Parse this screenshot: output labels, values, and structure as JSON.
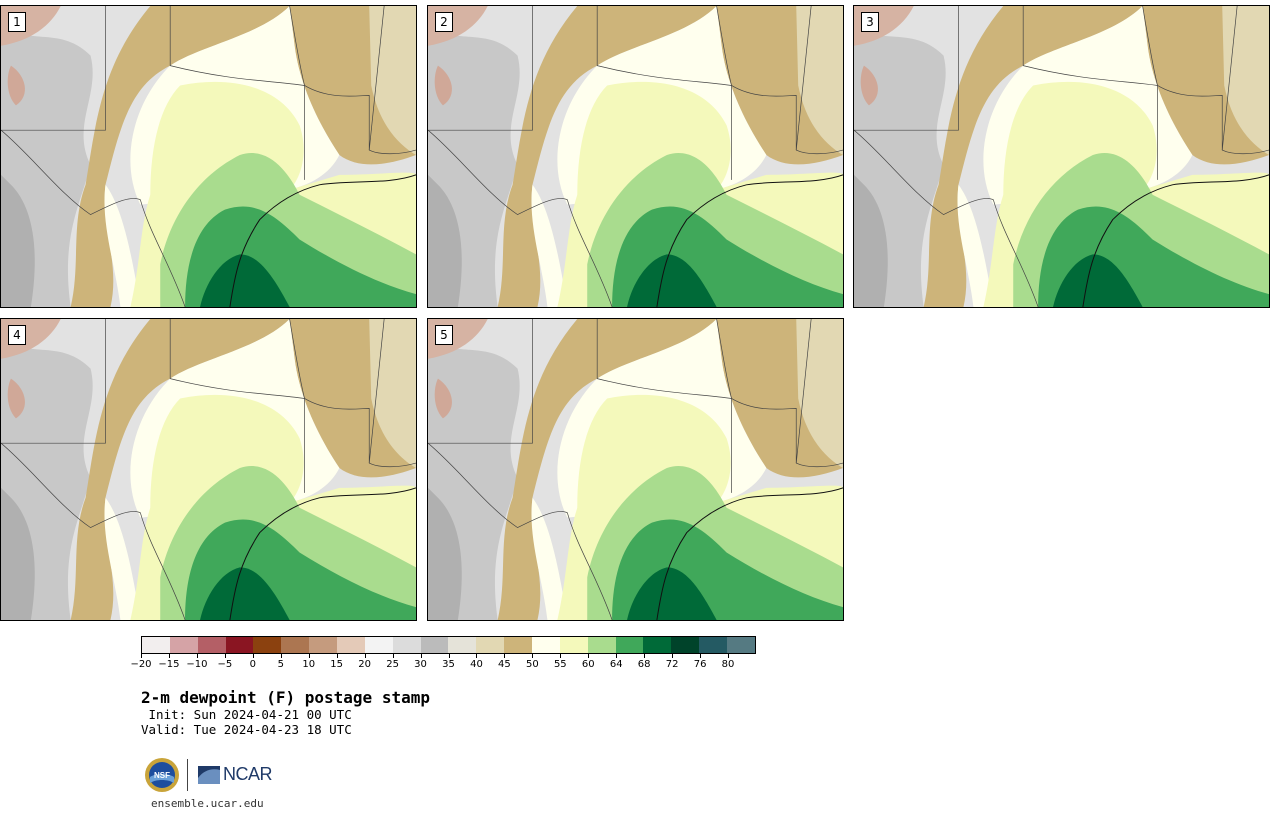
{
  "panels": [
    {
      "label": "1"
    },
    {
      "label": "2"
    },
    {
      "label": "3"
    },
    {
      "label": "4"
    },
    {
      "label": "5"
    }
  ],
  "colorbar": {
    "colors": [
      "#f2eeee",
      "#d5a3a6",
      "#b45f66",
      "#8a1522",
      "#8b410f",
      "#ac7651",
      "#c59b7e",
      "#e4cab8",
      "#f3f3f3",
      "#dcdcdc",
      "#bbbbbb",
      "#e5e3d9",
      "#e2d8b3",
      "#cdb47a",
      "#ffffee",
      "#f4f9bb",
      "#a9dc8e",
      "#40a85a",
      "#006a38",
      "#00432a",
      "#245a63",
      "#557a82"
    ],
    "tick_labels": [
      "−20",
      "−15",
      "−10",
      "−5",
      "0",
      "5",
      "10",
      "15",
      "20",
      "25",
      "30",
      "35",
      "40",
      "45",
      "50",
      "55",
      "60",
      "64",
      "68",
      "72",
      "76",
      "80"
    ]
  },
  "title": "2-m dewpoint (F) postage stamp",
  "init": " Init: Sun 2024-04-21 00 UTC",
  "valid": "Valid: Tue 2024-04-23 18 UTC",
  "logos": {
    "nsf": "NSF",
    "ncar": "NCAR"
  },
  "url": "ensemble.ucar.edu"
}
